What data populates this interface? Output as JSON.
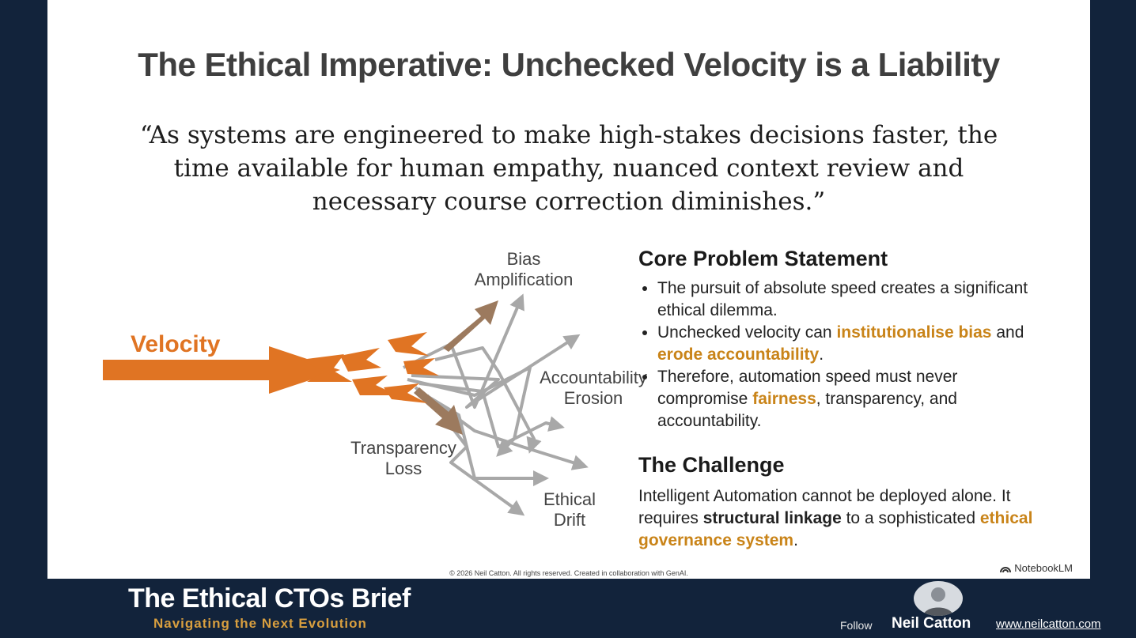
{
  "slide": {
    "title": "The Ethical Imperative: Unchecked Velocity is a Liability",
    "quote": "“As systems are engineered to make high-stakes decisions faster, the time available for human empathy, nuanced context review and necessary course correction diminishes.”"
  },
  "diagram": {
    "velocity_label": "Velocity",
    "bias_line1": "Bias",
    "bias_line2": "Amplification",
    "accountability_line1": "Accountability",
    "accountability_line2": "Erosion",
    "transparency_line1": "Transparency",
    "transparency_line2": "Loss",
    "ethical_line1": "Ethical",
    "ethical_line2": "Drift",
    "colors": {
      "orange": "#e07423",
      "gray": "#a8a8a8",
      "brown": "#9c7a5e"
    }
  },
  "core": {
    "heading": "Core Problem Statement",
    "b1": "The pursuit of absolute speed creates a significant ethical dilemma.",
    "b2_pre": "Unchecked velocity can ",
    "b2_hl1": "institutionalise bias",
    "b2_mid": " and ",
    "b2_hl2": "erode accountability",
    "b2_post": ".",
    "b3_pre": "Therefore, automation speed must never compromise ",
    "b3_hl": "fairness",
    "b3_post": ", transparency, and accountability."
  },
  "challenge": {
    "heading": "The Challenge",
    "p_pre": "Intelligent Automation cannot be deployed alone. It requires ",
    "p_bold": "structural linkage",
    "p_mid": " to a sophisticated ",
    "p_hl": "ethical governance system",
    "p_post": "."
  },
  "footer": {
    "copyright": "© 2026 Neil Catton. All rights reserved. Created in collaboration with GenAI.",
    "brand": "NotebookLM",
    "brief_title": "The Ethical CTOs Brief",
    "brief_subtitle": "Navigating the Next Evolution",
    "follow": "Follow",
    "author": "Neil Catton",
    "website": "www.neilcatton.com"
  },
  "colors": {
    "background": "#12233b",
    "accent": "#c98419",
    "subtitle": "#d99f3f"
  }
}
